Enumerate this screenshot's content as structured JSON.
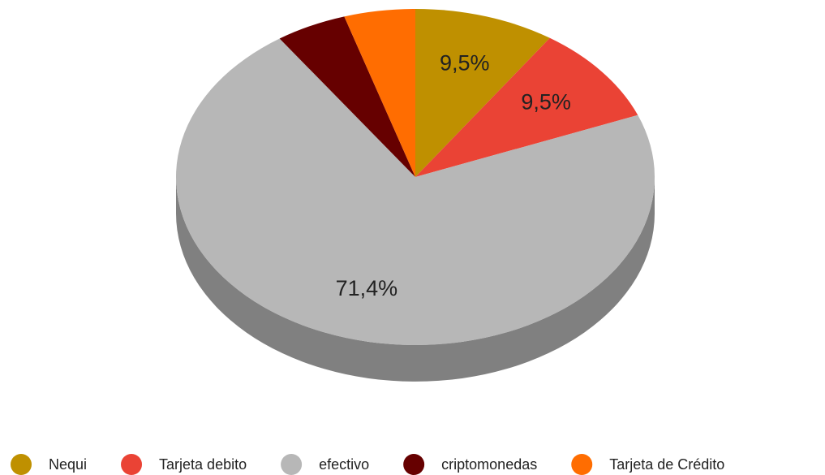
{
  "chart_data": {
    "type": "pie3d",
    "categories": [
      "Nequi",
      "Tarjeta debito",
      "efectivo",
      "criptomonedas",
      "Tarjeta de Crédito"
    ],
    "values": [
      9.5,
      9.5,
      71.4,
      4.8,
      4.8
    ],
    "value_labels": [
      "9,5%",
      "9,5%",
      "71,4%",
      null,
      null
    ],
    "colors": [
      "#bf9000",
      "#ea4335",
      "#b7b7b7",
      "#660000",
      "#ff6d01"
    ],
    "legend": "bottom"
  }
}
